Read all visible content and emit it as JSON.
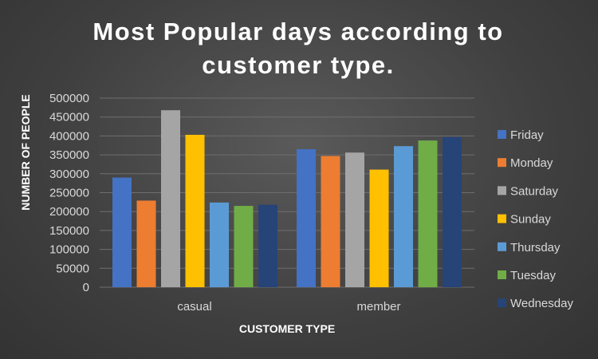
{
  "chart_data": {
    "type": "bar",
    "title_lines": [
      "Most Popular days according to",
      "customer type."
    ],
    "xlabel": "CUSTOMER TYPE",
    "ylabel": "NUMBER OF PEOPLE",
    "categories": [
      "casual",
      "member"
    ],
    "ylim": [
      0,
      500000
    ],
    "yticks": [
      "0",
      "50000",
      "100000",
      "150000",
      "200000",
      "250000",
      "300000",
      "350000",
      "400000",
      "450000",
      "500000"
    ],
    "grid": true,
    "legend_position": "right",
    "series": [
      {
        "name": "Friday",
        "color": "#4472c4",
        "values": [
          290000,
          365000
        ]
      },
      {
        "name": "Monday",
        "color": "#ed7d31",
        "values": [
          229000,
          347000
        ]
      },
      {
        "name": "Saturday",
        "color": "#a5a5a5",
        "values": [
          468000,
          356000
        ]
      },
      {
        "name": "Sunday",
        "color": "#ffc000",
        "values": [
          403000,
          311000
        ]
      },
      {
        "name": "Thursday",
        "color": "#5b9bd5",
        "values": [
          224000,
          373000
        ]
      },
      {
        "name": "Tuesday",
        "color": "#70ad47",
        "values": [
          215000,
          388000
        ]
      },
      {
        "name": "Wednesday",
        "color": "#264478",
        "values": [
          218000,
          397000
        ]
      }
    ]
  }
}
